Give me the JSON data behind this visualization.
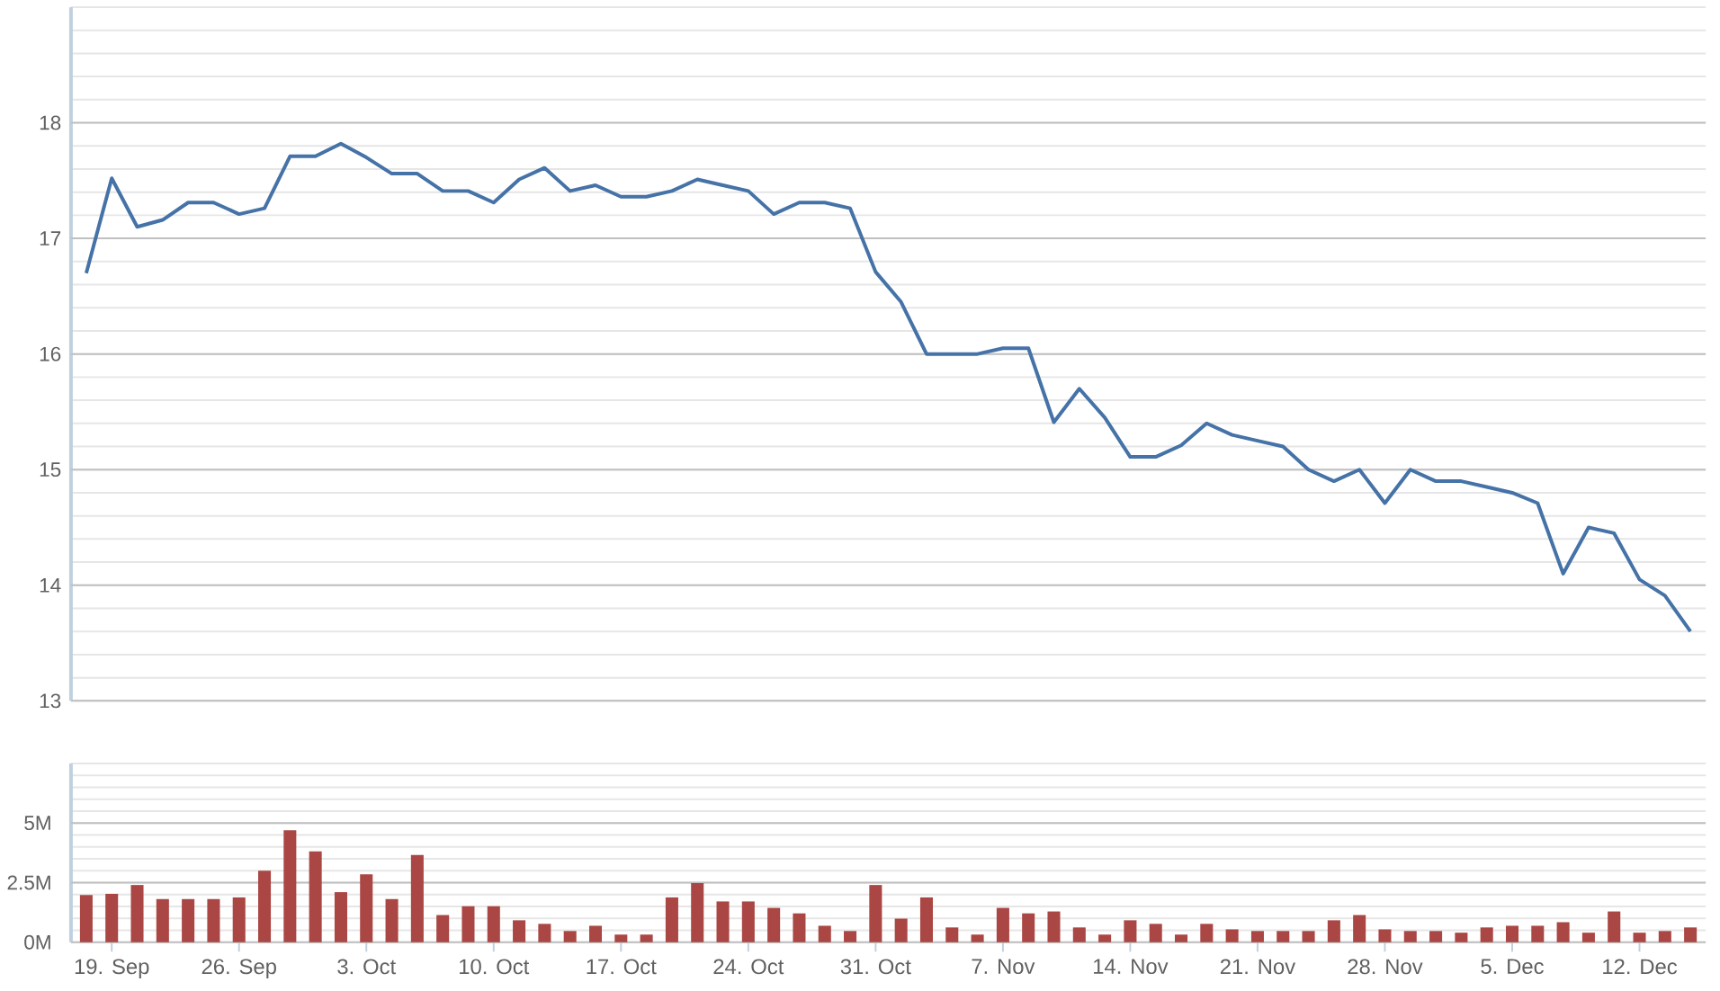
{
  "chart_data": [
    {
      "type": "line",
      "color": "#4572a7",
      "grid": "y",
      "tick_labels": "y",
      "categories": [
        null,
        null,
        null,
        null,
        null,
        null,
        null,
        null,
        null,
        null,
        null,
        null,
        null,
        null,
        null,
        null,
        null,
        null,
        null,
        null,
        null,
        null,
        null,
        null,
        null,
        null,
        null,
        null,
        null,
        null,
        null,
        null,
        null,
        null,
        null,
        null,
        null,
        null,
        null,
        null,
        null,
        null,
        null,
        null,
        null,
        null,
        null,
        null,
        null,
        null,
        null,
        null,
        null,
        null,
        null,
        null,
        null,
        null,
        null,
        null,
        null,
        null,
        null,
        null
      ],
      "values": [
        16.7,
        17.52,
        17.1,
        17.16,
        17.31,
        17.31,
        17.21,
        17.26,
        17.71,
        17.71,
        17.82,
        17.7,
        17.56,
        17.56,
        17.41,
        17.41,
        17.31,
        17.51,
        17.61,
        17.41,
        17.46,
        17.36,
        17.36,
        17.41,
        17.51,
        17.46,
        17.41,
        17.21,
        17.31,
        17.31,
        17.26,
        16.71,
        16.45,
        16.0,
        16.0,
        16.0,
        16.05,
        16.05,
        15.41,
        15.7,
        15.45,
        15.11,
        15.11,
        15.21,
        15.4,
        15.3,
        15.25,
        15.2,
        15.0,
        14.9,
        15.0,
        14.71,
        15.0,
        14.9,
        14.9,
        14.85,
        14.8,
        14.71,
        14.1,
        14.5,
        14.45,
        14.05,
        13.91,
        13.6
      ],
      "ylim": [
        13,
        19
      ],
      "yticks": [
        13,
        {
          "value": 13.2,
          "label": null
        },
        {
          "value": 13.4,
          "label": null
        },
        {
          "value": 13.6,
          "label": null
        },
        {
          "value": 13.8,
          "label": null
        },
        14,
        {
          "value": 14.2,
          "label": null
        },
        {
          "value": 14.4,
          "label": null
        },
        {
          "value": 14.6,
          "label": null
        },
        {
          "value": 14.8,
          "label": null
        },
        15,
        {
          "value": 15.2,
          "label": null
        },
        {
          "value": 15.4,
          "label": null
        },
        {
          "value": 15.6,
          "label": null
        },
        {
          "value": 15.8,
          "label": null
        },
        16,
        {
          "value": 16.2,
          "label": null
        },
        {
          "value": 16.4,
          "label": null
        },
        {
          "value": 16.6,
          "label": null
        },
        {
          "value": 16.8,
          "label": null
        },
        17,
        {
          "value": 17.2,
          "label": null
        },
        {
          "value": 17.4,
          "label": null
        },
        {
          "value": 17.6,
          "label": null
        },
        {
          "value": 17.8,
          "label": null
        },
        18,
        {
          "value": 18.2,
          "label": null
        },
        {
          "value": 18.4,
          "label": null
        },
        {
          "value": 18.6,
          "label": null
        },
        {
          "value": 18.8,
          "label": null
        },
        {
          "value": 19,
          "label": null
        }
      ]
    },
    {
      "type": "bar",
      "color": "#aa4643",
      "grid": "y",
      "categories": [
        null,
        "19. Sep",
        null,
        null,
        null,
        null,
        "26. Sep",
        null,
        null,
        null,
        null,
        "3. Oct",
        null,
        null,
        null,
        null,
        "10. Oct",
        null,
        null,
        null,
        null,
        "17. Oct",
        null,
        null,
        null,
        null,
        "24. Oct",
        null,
        null,
        null,
        null,
        "31. Oct",
        null,
        null,
        null,
        null,
        "7. Nov",
        null,
        null,
        null,
        null,
        "14. Nov",
        null,
        null,
        null,
        null,
        "21. Nov",
        null,
        null,
        null,
        null,
        "28. Nov",
        null,
        null,
        null,
        null,
        "5. Dec",
        null,
        null,
        null,
        null,
        "12. Dec",
        null,
        null
      ],
      "values": [
        1.98,
        2.03,
        2.4,
        1.81,
        1.81,
        1.81,
        1.88,
        3.0,
        4.7,
        3.81,
        2.1,
        2.85,
        1.81,
        3.66,
        1.14,
        1.51,
        1.51,
        0.92,
        0.77,
        0.47,
        0.69,
        0.32,
        0.32,
        1.88,
        2.48,
        1.71,
        1.71,
        1.44,
        1.21,
        0.69,
        0.47,
        2.4,
        0.99,
        1.88,
        0.62,
        0.32,
        1.44,
        1.21,
        1.29,
        0.62,
        0.32,
        0.92,
        0.77,
        0.32,
        0.77,
        0.54,
        0.47,
        0.47,
        0.47,
        0.92,
        1.14,
        0.54,
        0.47,
        0.47,
        0.4,
        0.62,
        0.69,
        0.69,
        0.84,
        0.4,
        1.29,
        0.4,
        0.47,
        0.62
      ],
      "ylim": [
        0,
        7.5
      ],
      "yticks": [
        {
          "value": 0,
          "label": "0M"
        },
        {
          "value": 0.5,
          "label": null
        },
        {
          "value": 1,
          "label": null
        },
        {
          "value": 1.5,
          "label": null
        },
        {
          "value": 2,
          "label": null
        },
        {
          "value": 2.5,
          "label": "2.5M"
        },
        {
          "value": 3,
          "label": null
        },
        {
          "value": 3.5,
          "label": null
        },
        {
          "value": 4,
          "label": null
        },
        {
          "value": 4.5,
          "label": null
        },
        {
          "value": 5,
          "label": "5M"
        },
        {
          "value": 5.5,
          "label": null
        },
        {
          "value": 6,
          "label": null
        },
        {
          "value": 6.5,
          "label": null
        },
        {
          "value": 7,
          "label": null
        },
        {
          "value": 7.5,
          "label": null
        }
      ]
    }
  ]
}
